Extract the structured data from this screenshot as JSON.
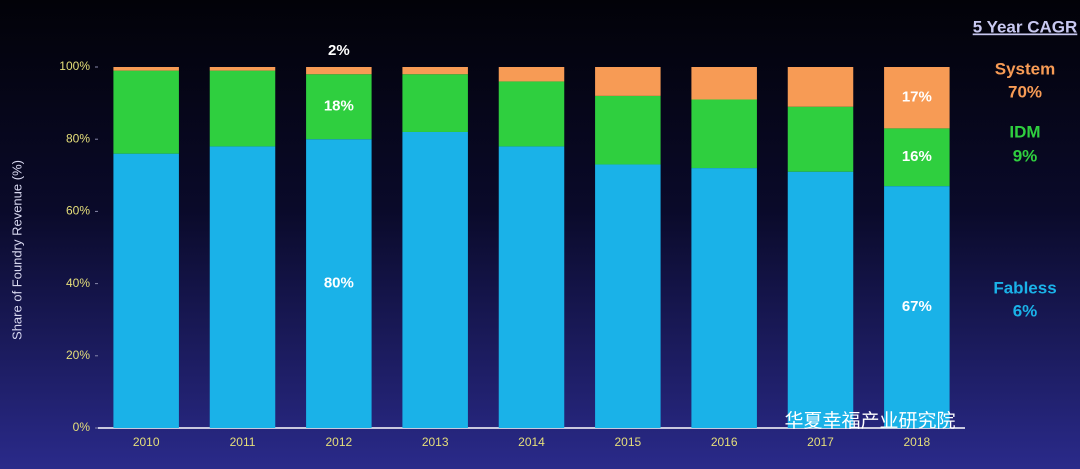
{
  "chart_data": {
    "type": "stacked_bar",
    "y_label": "Share of Foundry Revenue (%)",
    "legend_title": "5 Year CAGR",
    "watermark": "华夏幸福产业研究院",
    "categories": [
      "2010",
      "2011",
      "2012",
      "2013",
      "2014",
      "2015",
      "2016",
      "2017",
      "2018"
    ],
    "series": [
      {
        "name": "Fabless",
        "cagr": "6%",
        "color": "#1ab2e8",
        "values": [
          76,
          78,
          80,
          82,
          78,
          73,
          72,
          71,
          67
        ],
        "value_labels": [
          null,
          null,
          "80%",
          null,
          null,
          null,
          null,
          null,
          "67%"
        ]
      },
      {
        "name": "IDM",
        "cagr": "9%",
        "color": "#2fcf3f",
        "values": [
          23,
          21,
          18,
          16,
          18,
          19,
          19,
          18,
          16
        ],
        "value_labels": [
          null,
          null,
          "18%",
          null,
          null,
          null,
          null,
          null,
          "16%"
        ]
      },
      {
        "name": "System",
        "cagr": "70%",
        "color": "#f79b55",
        "values": [
          1,
          1,
          2,
          2,
          4,
          8,
          9,
          11,
          17
        ],
        "value_labels": [
          null,
          null,
          "2%",
          null,
          null,
          null,
          null,
          null,
          "17%"
        ]
      }
    ],
    "ylim": [
      0,
      100
    ],
    "yticks": [
      {
        "value": 0,
        "label": "0%"
      },
      {
        "value": 20,
        "label": "20%"
      },
      {
        "value": 40,
        "label": "40%"
      },
      {
        "value": 60,
        "label": "60%"
      },
      {
        "value": 80,
        "label": "80%"
      },
      {
        "value": 100,
        "label": "100%"
      }
    ]
  }
}
